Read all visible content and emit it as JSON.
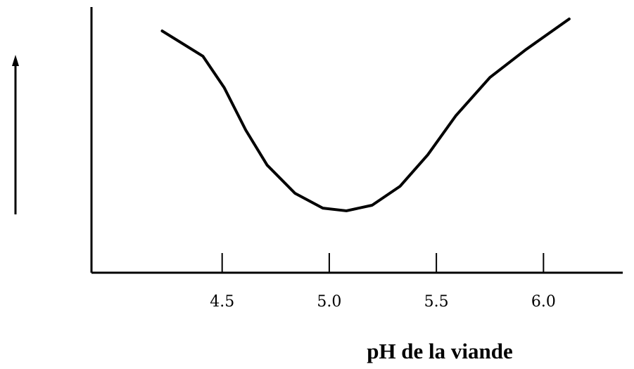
{
  "chart_data": {
    "type": "line",
    "x_label": "pH de la viande",
    "x": [
      4.22,
      4.41,
      4.51,
      4.61,
      4.71,
      4.84,
      4.97,
      5.08,
      5.2,
      5.33,
      5.46,
      5.59,
      5.75,
      5.92,
      6.12
    ],
    "series": [
      {
        "color": "#000000",
        "values": [
          91,
          81.5,
          69.6,
          53.7,
          40.5,
          29.9,
          24.3,
          23.3,
          25.4,
          32.5,
          44.4,
          59,
          73.5,
          84.1,
          95.5
        ]
      }
    ],
    "xlim": [
      3.89,
      6.37
    ],
    "xticks": [
      4.5,
      {
        "value": 5,
        "label": "5.0"
      },
      5.5,
      {
        "value": 6,
        "label": "6.0"
      }
    ],
    "ylim": [
      0,
      100
    ]
  }
}
